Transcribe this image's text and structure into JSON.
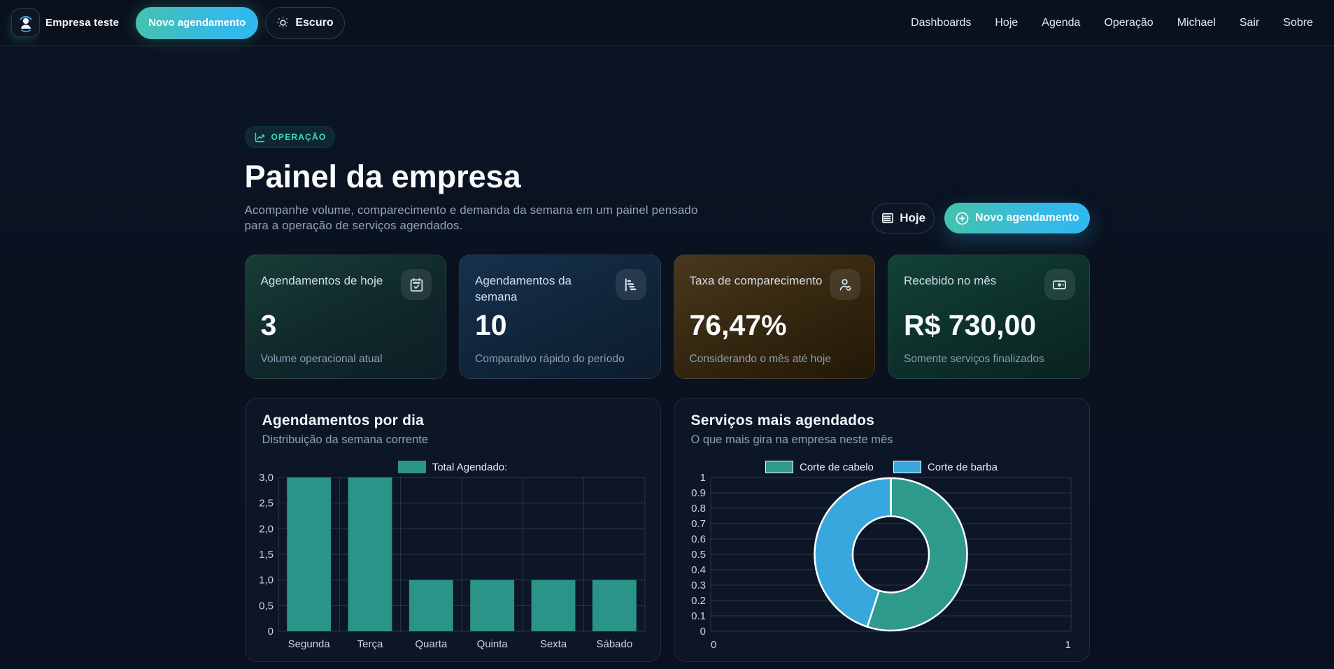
{
  "navbar": {
    "brand": "Empresa teste",
    "new_appointment_label": "Novo agendamento",
    "theme_toggle_label": "Escuro",
    "links": [
      "Dashboards",
      "Hoje",
      "Agenda",
      "Operação",
      "Michael",
      "Sair",
      "Sobre"
    ]
  },
  "hero": {
    "badge": "OPERAÇÃO",
    "title": "Painel da empresa",
    "subtitle": "Acompanhe volume, comparecimento e demanda da semana em um painel pensado para a operação de serviços agendados.",
    "today_button": "Hoje",
    "new_appointment_button": "Novo agendamento"
  },
  "stats": [
    {
      "title": "Agendamentos de hoje",
      "value": "3",
      "caption": "Volume operacional atual"
    },
    {
      "title": "Agendamentos da semana",
      "value": "10",
      "caption": "Comparativo rápido do período"
    },
    {
      "title": "Taxa de comparecimento",
      "value": "76,47%",
      "caption": "Considerando o mês até hoje"
    },
    {
      "title": "Recebido no mês",
      "value": "R$ 730,00",
      "caption": "Somente serviços finalizados"
    }
  ],
  "chart_data": [
    {
      "type": "bar",
      "title": "Agendamentos por dia",
      "subtitle": "Distribuição da semana corrente",
      "legend": [
        "Total Agendado:"
      ],
      "legend_position": "top",
      "categories": [
        "Segunda",
        "Terça",
        "Quarta",
        "Quinta",
        "Sexta",
        "Sábado"
      ],
      "values": [
        3,
        3,
        1,
        1,
        1,
        1
      ],
      "ylim": [
        0,
        3
      ],
      "y_tick_labels": [
        "0",
        "0,5",
        "1,0",
        "1,5",
        "2,0",
        "2,5",
        "3,0"
      ],
      "grid": true,
      "bar_color": "#2b9488"
    },
    {
      "type": "pie",
      "title": "Serviços mais agendados",
      "subtitle": "O que mais gira na empresa neste mês",
      "legend_position": "top",
      "labels": [
        "Corte de cabelo",
        "Corte de barba"
      ],
      "values": [
        55,
        45
      ],
      "colors": [
        "#2e9a8c",
        "#37a7de"
      ],
      "donut": true,
      "border_color": "#ffffff",
      "y_tick_labels": [
        "0",
        "0.1",
        "0.2",
        "0.3",
        "0.4",
        "0.5",
        "0.6",
        "0.7",
        "0.8",
        "0.9",
        "1"
      ],
      "x_tick_labels": [
        "0",
        "1"
      ],
      "ylim": [
        0,
        1
      ],
      "xlim": [
        0,
        1
      ],
      "grid": true
    }
  ]
}
